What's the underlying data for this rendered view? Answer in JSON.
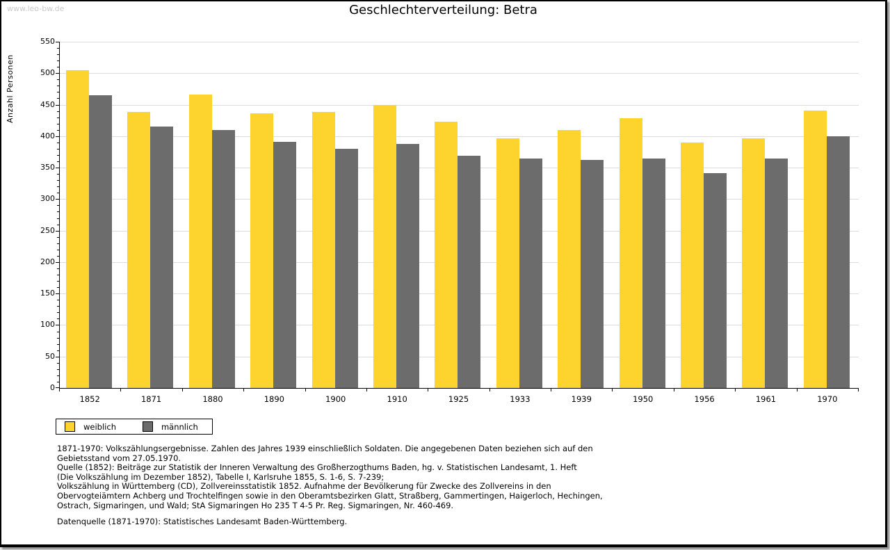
{
  "watermark": "www.leo-bw.de",
  "title": "Geschlechterverteilung: Betra",
  "chart_data": {
    "type": "bar",
    "title": "Geschlechterverteilung: Betra",
    "ylabel": "Anzahl Personen",
    "xlabel": "",
    "ylim": [
      0,
      550
    ],
    "ytick_step": 50,
    "ytick_minor": 10,
    "grid": "horizontal gridlines at every 50, light gray",
    "legend_position": "bottom-left, boxed",
    "categories": [
      "1852",
      "1871",
      "1880",
      "1890",
      "1900",
      "1910",
      "1925",
      "1933",
      "1939",
      "1950",
      "1956",
      "1961",
      "1970"
    ],
    "series": [
      {
        "name": "weiblich",
        "color": "#FCD42D",
        "values": [
          505,
          438,
          466,
          436,
          438,
          450,
          423,
          396,
          410,
          428,
          390,
          397,
          441
        ]
      },
      {
        "name": "männlich",
        "color": "#6C6C6C",
        "values": [
          465,
          415,
          410,
          391,
          380,
          388,
          369,
          364,
          362,
          364,
          341,
          364,
          400
        ]
      }
    ]
  },
  "footnote": {
    "lines": [
      "1871-1970: Volkszählungsergebnisse. Zahlen des Jahres 1939 einschließlich Soldaten. Die angegebenen Daten beziehen sich auf den",
      "Gebietsstand vom 27.05.1970.",
      "Quelle (1852): Beiträge zur Statistik der Inneren Verwaltung des Großherzogthums Baden, hg. v. Statistischen Landesamt, 1. Heft",
      "(Die Volkszählung im Dezember 1852), Tabelle I, Karlsruhe 1855, S. 1-6, S. 7-239;",
      "Volkszählung in Württemberg (CD), Zollvereinsstatistik 1852. Aufnahme der Bevölkerung für Zwecke des Zollvereins in den",
      "Obervogteiämtern Achberg und Trochtelfingen sowie in den Oberamtsbezirken Glatt, Straßberg, Gammertingen, Haigerloch, Hechingen,",
      "Ostrach, Sigmaringen, und Wald; StA Sigmaringen Ho 235 T 4-5 Pr. Reg. Sigmaringen, Nr. 460-469."
    ],
    "source": "Datenquelle (1871-1970): Statistisches Landesamt Baden-Württemberg."
  }
}
